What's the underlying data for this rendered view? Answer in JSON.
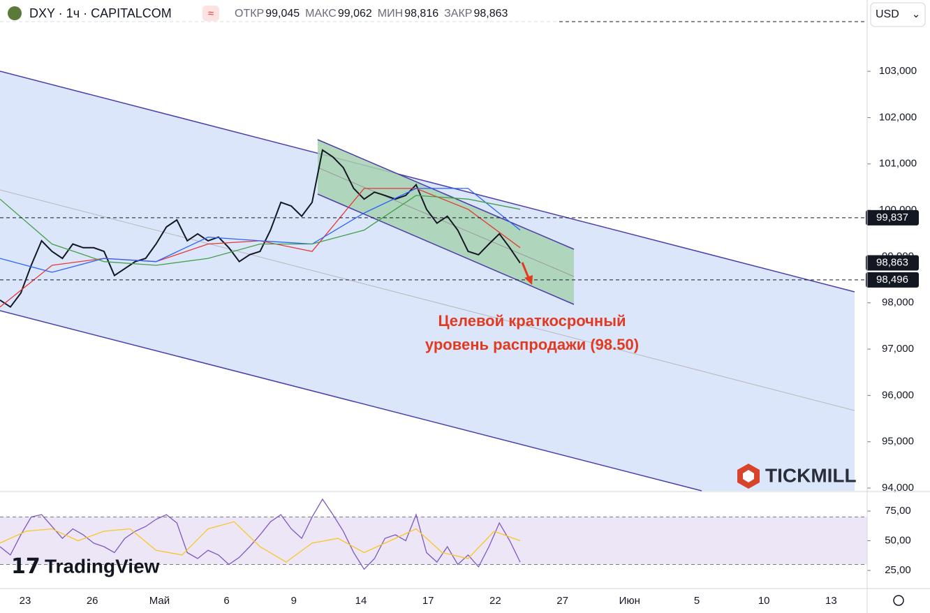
{
  "header": {
    "symbol": "DXY · 1ч · CAPITALCOM",
    "ohlc": [
      {
        "label": "ОТКР",
        "value": "99,045"
      },
      {
        "label": "МАКС",
        "value": "99,062"
      },
      {
        "label": "МИН",
        "value": "98,816"
      },
      {
        "label": "ЗАКР",
        "value": "98,863"
      }
    ],
    "currency": "USD"
  },
  "branding": {
    "broker": "TICKMILL",
    "platform": "TradingView"
  },
  "chart_data": [
    {
      "type": "line",
      "xtick_labels": [
        "23",
        "26",
        "Май",
        "6",
        "9",
        "14",
        "17",
        "22",
        "27",
        "Июн",
        "5",
        "10",
        "13"
      ],
      "ylim": [
        93.94,
        104.54
      ],
      "yticks": [
        {
          "value": 94,
          "label": "94,000"
        },
        {
          "value": 95,
          "label": "95,000"
        },
        {
          "value": 96,
          "label": "96,000"
        },
        {
          "value": 97,
          "label": "97,000"
        },
        {
          "value": 98,
          "label": "98,000"
        },
        {
          "value": 99,
          "label": "99,000"
        },
        {
          "value": 100,
          "label": "100,000"
        },
        {
          "value": 101,
          "label": "101,000"
        },
        {
          "value": 102,
          "label": "102,000"
        },
        {
          "value": 103,
          "label": "103,000"
        }
      ],
      "levels": [
        {
          "value": 99.837,
          "label": "99,837"
        },
        {
          "value": 98.863,
          "label": "98,863"
        },
        {
          "value": 98.496,
          "label": "98,496"
        }
      ],
      "annotation": [
        "Целевой краткосрочный",
        "уровень распродажи (98.50)"
      ],
      "series": [
        {
          "color": "#131722",
          "values": [
            98.06,
            97.91,
            98.21,
            98.81,
            99.34,
            99.11,
            98.96,
            99.27,
            99.19,
            99.19,
            99.11,
            98.59,
            98.74,
            98.89,
            98.96,
            99.27,
            99.64,
            99.79,
            99.34,
            99.49,
            99.34,
            99.42,
            99.19,
            98.89,
            99.04,
            99.11,
            99.57,
            100.17,
            100.09,
            99.87,
            100.17,
            101.3,
            101.15,
            100.92,
            100.47,
            100.24,
            100.39,
            100.32,
            100.24,
            100.32,
            100.55,
            100.02,
            99.72,
            99.87,
            99.57,
            99.11,
            99.04,
            99.27,
            99.49,
            99.19,
            98.86
          ]
        },
        {
          "color": "#e53935",
          "values": [
            97.91,
            98.81,
            98.96,
            98.89,
            99.27,
            99.34,
            99.11,
            100.47,
            100.47,
            100.02,
            99.19
          ]
        },
        {
          "color": "#2962ff",
          "values": [
            98.96,
            98.66,
            98.96,
            98.89,
            99.42,
            99.34,
            99.27,
            99.94,
            100.47,
            100.47,
            99.57
          ]
        },
        {
          "color": "#43a047",
          "values": [
            100.24,
            99.27,
            98.89,
            98.81,
            98.96,
            99.27,
            99.27,
            99.57,
            100.32,
            100.24,
            100.02
          ]
        }
      ]
    },
    {
      "type": "line",
      "ylim": [
        11.5,
        90.9
      ],
      "yticks": [
        {
          "value": 25,
          "label": "25,00"
        },
        {
          "value": 50,
          "label": "50,00"
        },
        {
          "value": 75,
          "label": "75,00"
        }
      ],
      "bands": [
        30,
        70
      ],
      "series": [
        {
          "color": "#7e57c2",
          "values": [
            45,
            38,
            55,
            70,
            72,
            62,
            52,
            60,
            55,
            48,
            45,
            40,
            52,
            58,
            62,
            68,
            72,
            65,
            40,
            35,
            42,
            38,
            30,
            36,
            45,
            55,
            66,
            72,
            60,
            52,
            70,
            85,
            72,
            58,
            40,
            26,
            35,
            52,
            55,
            50,
            72,
            40,
            32,
            45,
            30,
            38,
            28,
            45,
            65,
            50,
            32
          ]
        },
        {
          "color": "#f9c623",
          "values": [
            48,
            58,
            60,
            50,
            58,
            60,
            42,
            38,
            60,
            66,
            45,
            32,
            48,
            52,
            40,
            50,
            60,
            40,
            35,
            58,
            50
          ]
        }
      ]
    }
  ]
}
